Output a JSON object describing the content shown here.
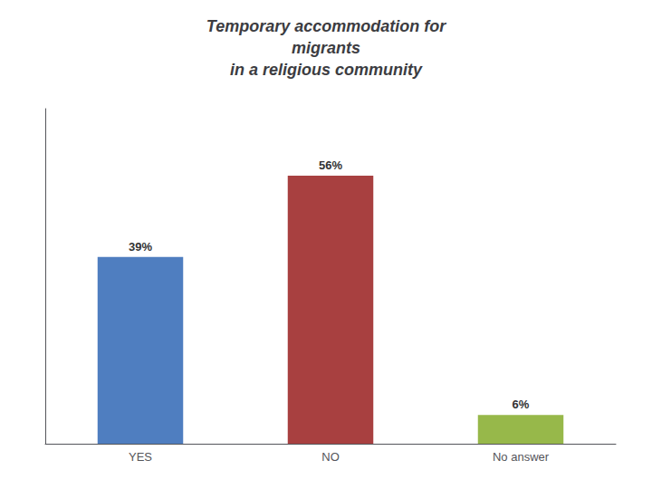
{
  "chart_data": {
    "type": "bar",
    "title": "Temporary accommodation for\nmigrants\nin a religious community",
    "categories": [
      "YES",
      "NO",
      "No answer"
    ],
    "values": [
      39,
      56,
      6
    ],
    "value_labels": [
      "39%",
      "56%",
      "6%"
    ],
    "colors": [
      "#4F7EC0",
      "#A84040",
      "#97B84A"
    ],
    "ylim": [
      0,
      70
    ],
    "tick_labels": "x",
    "data_labels": true,
    "grid": false
  }
}
